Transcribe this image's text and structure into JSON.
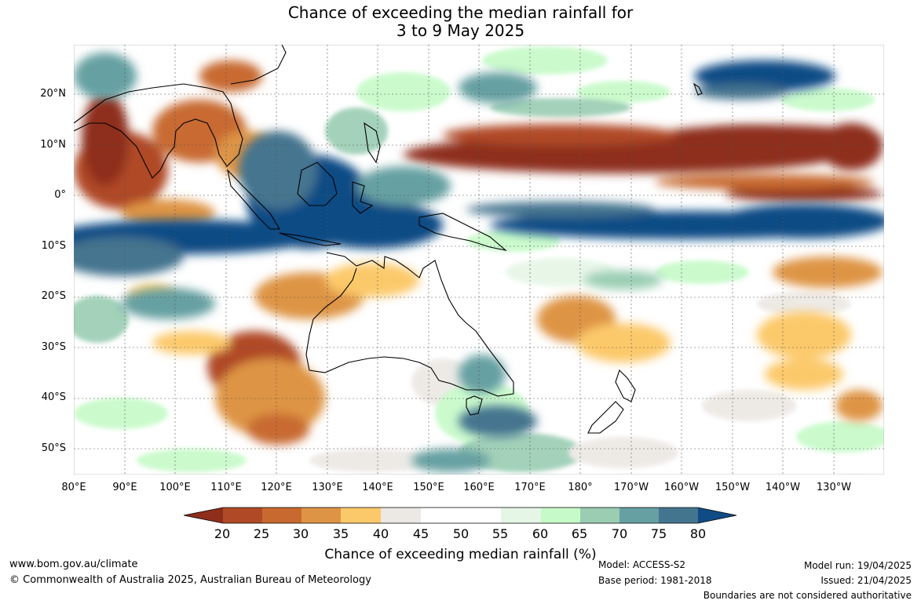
{
  "title": {
    "line1": "Chance of exceeding the median rainfall for",
    "line2": "3 to 9 May 2025"
  },
  "map": {
    "lat_labels": [
      "20°N",
      "10°N",
      "0°",
      "10°S",
      "20°S",
      "30°S",
      "40°S",
      "50°S"
    ],
    "lon_labels": [
      "80°E",
      "90°E",
      "100°E",
      "110°E",
      "120°E",
      "130°E",
      "140°E",
      "150°E",
      "160°E",
      "170°E",
      "180°",
      "170°W",
      "160°W",
      "150°W",
      "140°W",
      "130°W"
    ],
    "colors": {
      "p20": "#8e2e1b",
      "p25": "#b04a26",
      "p30": "#c86a30",
      "p35": "#de9445",
      "p40": "#fcc96a",
      "p45": "#ece8e4",
      "p50": "#ffffff",
      "p60": "#e6f6e6",
      "p65": "#c6fac8",
      "p70": "#9acdb2",
      "p75": "#66a0a2",
      "p80": "#44758f",
      "p80plus": "#114b85"
    }
  },
  "colorbar": {
    "ticks": [
      "20",
      "25",
      "30",
      "35",
      "40",
      "45",
      "50",
      "55",
      "60",
      "65",
      "70",
      "75",
      "80"
    ],
    "label": "Chance of exceeding median rainfall (%)"
  },
  "footer": {
    "url": "www.bom.gov.au/climate",
    "copyright": "© Commonwealth of Australia 2025, Australian Bureau of Meteorology",
    "model": "Model: ACCESS-S2",
    "base_period": "Base period: 1981-2018",
    "model_run": "Model run: 19/04/2025",
    "issued": "Issued: 21/04/2025",
    "disclaimer": "Boundaries are not considered authoritative"
  }
}
